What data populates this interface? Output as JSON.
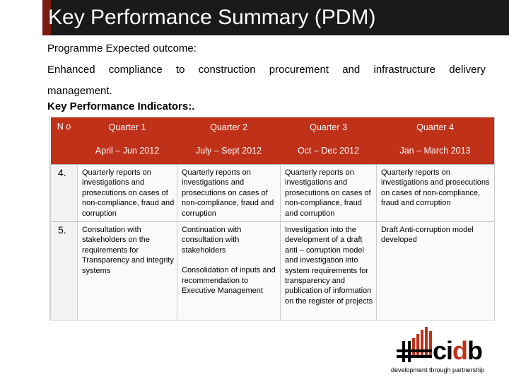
{
  "slide": {
    "title": "Key Performance Summary (PDM)",
    "outcome_label": "Programme Expected outcome:",
    "outcome_words": [
      "Enhanced",
      "compliance",
      "to",
      "construction",
      "procurement",
      "and",
      "infrastructure",
      "delivery"
    ],
    "outcome_line2": "management.",
    "kpi_label": "Key Performance Indicators:."
  },
  "table": {
    "no_header": "N o",
    "quarters": [
      "Quarter 1",
      "Quarter 2",
      "Quarter 3",
      "Quarter 4"
    ],
    "periods": [
      "April – Jun 2012",
      "July – Sept 2012",
      "Oct – Dec 2012",
      "Jan  – March 2013"
    ],
    "rows": [
      {
        "num": "4.",
        "cells": [
          "Quarterly reports on investigations and prosecutions  on cases of non-compliance, fraud and corruption",
          "Quarterly reports on investigations and prosecutions  on cases of non-compliance, fraud and corruption",
          "Quarterly reports on investigations and prosecutions  on cases of non-compliance, fraud and corruption",
          "Quarterly reports on investigations and prosecutions  on cases of non-compliance, fraud and corruption"
        ]
      },
      {
        "num": "5.",
        "cells": [
          "Consultation with stakeholders on the requirements for Transparency and integrity systems",
          "Continuation with consultation with stakeholders",
          "Investigation into the development of a draft anti – corruption model and investigation into system requirements for transparency and publication of information on the register of projects",
          "Draft Anti-corruption model developed"
        ],
        "cell2_extra": "Consolidation of inputs and recommendation to Executive Management"
      }
    ]
  },
  "logo": {
    "word_prefix": "ci",
    "word_accent": "d",
    "word_suffix": "b",
    "tagline": "development through partnership",
    "accent_color": "#c0311a"
  }
}
